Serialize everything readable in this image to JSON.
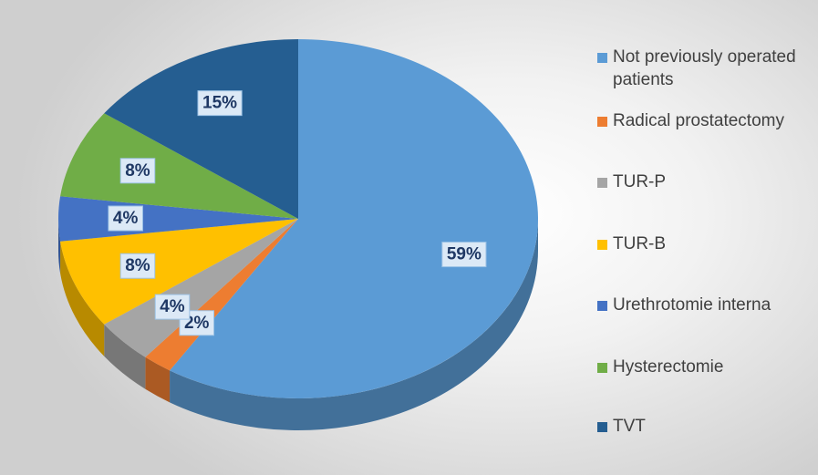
{
  "chart_data": {
    "type": "pie",
    "categories": [
      "Not previously operated patients",
      "Radical prostatectomy",
      "TUR-P",
      "TUR-B",
      "Urethrotomie interna",
      "Hysterectomie",
      "TVT"
    ],
    "values": [
      59,
      2,
      4,
      8,
      4,
      8,
      15
    ],
    "value_labels": [
      "59%",
      "2%",
      "4%",
      "8%",
      "4%",
      "8%",
      "15%"
    ],
    "colors": [
      "#5b9bd5",
      "#ed7d31",
      "#a5a5a5",
      "#ffc000",
      "#4472c4",
      "#70ad47",
      "#255e91"
    ],
    "legend": "right"
  }
}
